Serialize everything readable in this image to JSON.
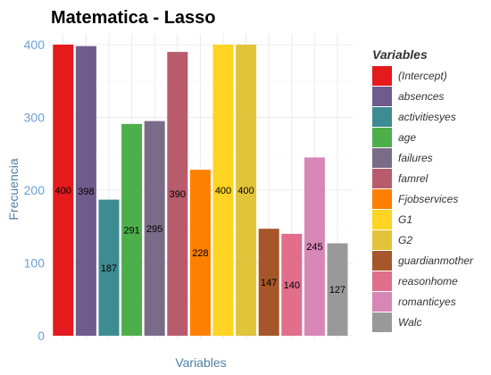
{
  "chart_data": {
    "type": "bar",
    "title": "Matematica - Lasso",
    "xlabel": "Variables",
    "ylabel": "Frecuencia",
    "ylim": [
      0,
      400
    ],
    "yticks": [
      0,
      100,
      200,
      300,
      400
    ],
    "grid": true,
    "legend_title": "Variables",
    "legend_position": "right",
    "categories": [
      "(Intercept)",
      "absences",
      "activitiesyes",
      "age",
      "failures",
      "famrel",
      "Fjobservices",
      "G1",
      "G2",
      "guardianmother",
      "reasonhome",
      "romanticyes",
      "Walc"
    ],
    "values": [
      400,
      398,
      187,
      291,
      295,
      390,
      228,
      400,
      400,
      147,
      140,
      245,
      127
    ],
    "colors": [
      "#e41a1c",
      "#6f5c8c",
      "#3d8c92",
      "#4daf4a",
      "#7a6c88",
      "#b85b6d",
      "#ff7f00",
      "#ffd422",
      "#e2c43a",
      "#a65628",
      "#e06e8c",
      "#d787b6",
      "#999999"
    ]
  }
}
